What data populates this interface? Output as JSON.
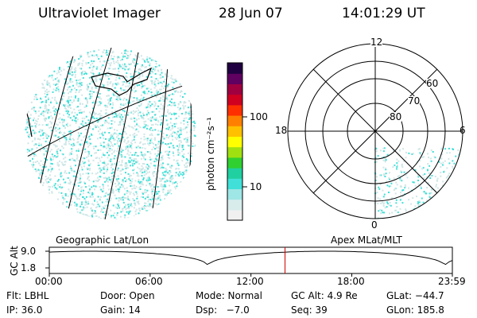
{
  "header": {
    "title": "Ultraviolet Imager",
    "date": "28 Jun 07",
    "time": "14:01:29 UT"
  },
  "colorbar": {
    "unit_label": "photon cm⁻²s⁻¹",
    "ticks": [
      "100",
      "10"
    ]
  },
  "polar_plot": {
    "mlt_labels": {
      "top": "12",
      "left": "18",
      "right": "6",
      "bottom": "0"
    },
    "mlat_labels": [
      "60",
      "70",
      "80"
    ]
  },
  "panel_labels": {
    "geo": "Geographic Lat/Lon",
    "apex": "Apex MLat/MLT"
  },
  "altitude_strip": {
    "ylabel": "GC Alt",
    "ticks": [
      "9.0",
      "1.8"
    ],
    "time_ticks": [
      "00:00",
      "06:00",
      "12:00",
      "18:00",
      "23:59"
    ],
    "marker_time_hours": 14.025
  },
  "status": {
    "flt": "Flt: LBHL",
    "door": "Door: Open",
    "mode": "Mode: Normal",
    "gc_alt": "GC Alt: 4.9 Re",
    "glat": "GLat: −44.7",
    "ip": "IP: 36.0",
    "gain": "Gain: 14",
    "dsp": "Dsp:   −7.0",
    "seq": "Seq: 39",
    "glon": "GLon: 185.8"
  },
  "colors": {
    "aurora_cyan": "#40e0d8",
    "aurora_pale": "#cfe6e6",
    "marker_red": "#cc0000"
  }
}
